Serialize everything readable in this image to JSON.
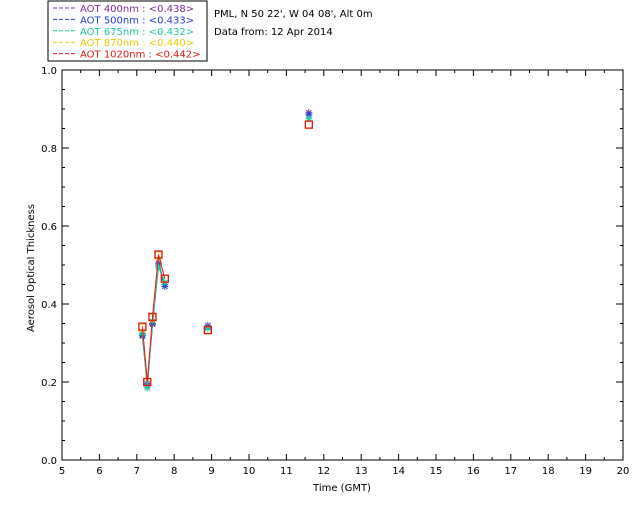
{
  "chart_data": {
    "type": "scatter",
    "header_lines": [
      "PML, N 50 22', W 04 08', Alt 0m",
      "Data from: 12 Apr 2014"
    ],
    "xlabel": "Time (GMT)",
    "ylabel": "Aerosol Optical Thickness",
    "xlim": [
      5,
      20
    ],
    "ylim": [
      0,
      1
    ],
    "x_ticks": [
      "5",
      "6",
      "7",
      "8",
      "9",
      "10",
      "11",
      "12",
      "13",
      "14",
      "15",
      "16",
      "17",
      "18",
      "19",
      "20"
    ],
    "y_ticks": [
      "0.0",
      "0.2",
      "0.4",
      "0.6",
      "0.8",
      "1.0"
    ],
    "grid": false,
    "legend_position": "top-left (above plot)",
    "series": [
      {
        "name": "AOT  400nm : <0.438>",
        "color": "#7a2f9a",
        "marker": "star",
        "x": [
          7.15,
          7.28,
          7.42,
          7.58,
          7.75,
          8.9,
          11.6
        ],
        "y": [
          0.32,
          0.195,
          0.35,
          0.505,
          0.45,
          0.345,
          0.89
        ]
      },
      {
        "name": "AOT  500nm : <0.433>",
        "color": "#1f3fd6",
        "marker": "star",
        "x": [
          7.15,
          7.28,
          7.42,
          7.58,
          7.75,
          8.9,
          11.6
        ],
        "y": [
          0.318,
          0.19,
          0.348,
          0.5,
          0.445,
          0.34,
          0.885
        ]
      },
      {
        "name": "AOT  675nm : <0.432>",
        "color": "#1ec8a0",
        "marker": "star",
        "x": [
          7.15,
          7.28,
          7.42,
          7.58,
          7.75,
          8.9,
          11.6
        ],
        "y": [
          0.325,
          0.185,
          0.355,
          0.495,
          0.455,
          0.338,
          0.875
        ]
      },
      {
        "name": "AOT  870nm : <0.440>",
        "color": "#f0c800",
        "marker": "square",
        "x": [
          7.15,
          7.28,
          7.42,
          7.58,
          7.75,
          8.9,
          11.6
        ],
        "y": [
          0.34,
          0.2,
          0.365,
          0.525,
          0.465,
          0.333,
          0.86
        ]
      },
      {
        "name": "AOT 1020nm : <0.442>",
        "color": "#e01818",
        "marker": "square",
        "x": [
          7.15,
          7.28,
          7.42,
          7.58,
          7.75,
          8.9,
          11.6
        ],
        "y": [
          0.342,
          0.2,
          0.367,
          0.527,
          0.465,
          0.333,
          0.86
        ]
      }
    ]
  }
}
